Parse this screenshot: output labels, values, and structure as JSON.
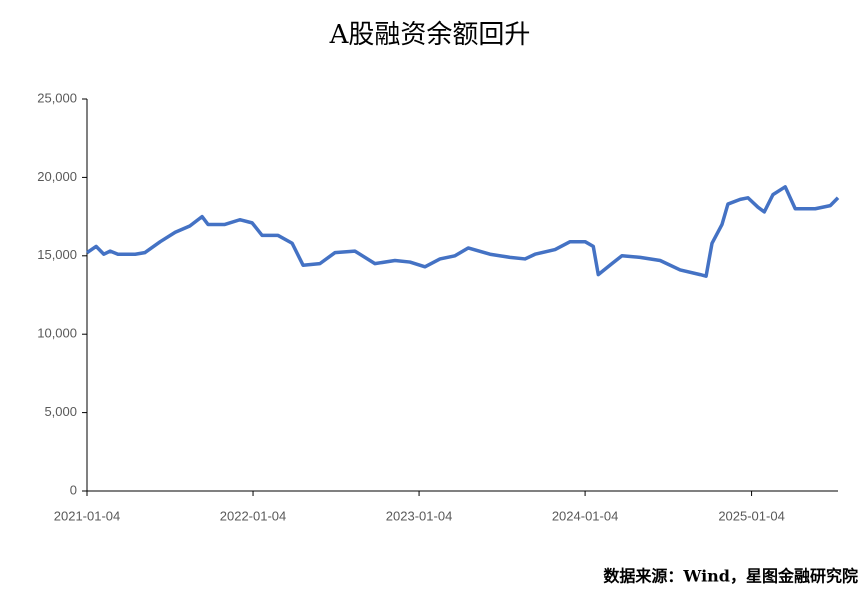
{
  "chart_data": {
    "type": "line",
    "title": "A股融资余额回升",
    "source": "数据来源：Wind，星图金融研究院",
    "x": [
      "2021-01-04",
      "2021-01-24",
      "2021-02-10",
      "2021-02-24",
      "2021-03-13",
      "2021-04-20",
      "2021-05-11",
      "2021-06-14",
      "2021-07-17",
      "2021-08-18",
      "2021-09-14",
      "2021-09-27",
      "2021-11-03",
      "2021-12-06",
      "2022-01-02",
      "2022-01-24",
      "2022-02-28",
      "2022-03-31",
      "2022-04-24",
      "2022-05-31",
      "2022-07-03",
      "2022-08-16",
      "2022-09-29",
      "2022-11-12",
      "2022-12-15",
      "2023-01-17",
      "2023-02-19",
      "2023-03-24",
      "2023-04-22",
      "2023-06-09",
      "2023-07-23",
      "2023-08-25",
      "2023-09-16",
      "2023-10-30",
      "2023-12-02",
      "2024-01-04",
      "2024-01-22",
      "2024-02-02",
      "2024-03-03",
      "2024-03-25",
      "2024-05-04",
      "2024-06-17",
      "2024-07-31",
      "2024-09-13",
      "2024-09-26",
      "2024-10-09",
      "2024-10-31",
      "2024-11-13",
      "2024-12-10",
      "2024-12-27",
      "2025-01-18",
      "2025-02-01",
      "2025-02-20",
      "2025-03-19",
      "2025-04-10",
      "2025-05-24",
      "2025-06-26",
      "2025-07-13"
    ],
    "series": [
      {
        "color": "#4472c4",
        "values": [
          15200,
          15600,
          15100,
          15300,
          15100,
          15100,
          15200,
          15900,
          16500,
          16900,
          17500,
          17000,
          17000,
          17300,
          17100,
          16300,
          16300,
          15800,
          14400,
          14500,
          15200,
          15300,
          14500,
          14700,
          14600,
          14300,
          14800,
          15000,
          15500,
          15100,
          14900,
          14800,
          15100,
          15400,
          15900,
          15900,
          15600,
          13800,
          14500,
          15000,
          14900,
          14700,
          14100,
          13800,
          13700,
          15800,
          17000,
          18300,
          18600,
          18700,
          18100,
          17800,
          18900,
          19400,
          18000,
          18000,
          18200,
          18700
        ]
      }
    ],
    "xlim": [
      "2021-01-04",
      "2025-07-13"
    ],
    "xticks": [
      "2021-01-04",
      "2022-01-04",
      "2023-01-04",
      "2024-01-04",
      "2025-01-04"
    ],
    "ylim": [
      0,
      25000
    ],
    "yticks": [
      0,
      {
        "value": 5000,
        "label": "5,000"
      },
      {
        "value": 10000,
        "label": "10,000"
      },
      {
        "value": 15000,
        "label": "15,000"
      },
      {
        "value": 20000,
        "label": "20,000"
      },
      {
        "value": 25000,
        "label": "25,000"
      }
    ],
    "grid": false
  }
}
